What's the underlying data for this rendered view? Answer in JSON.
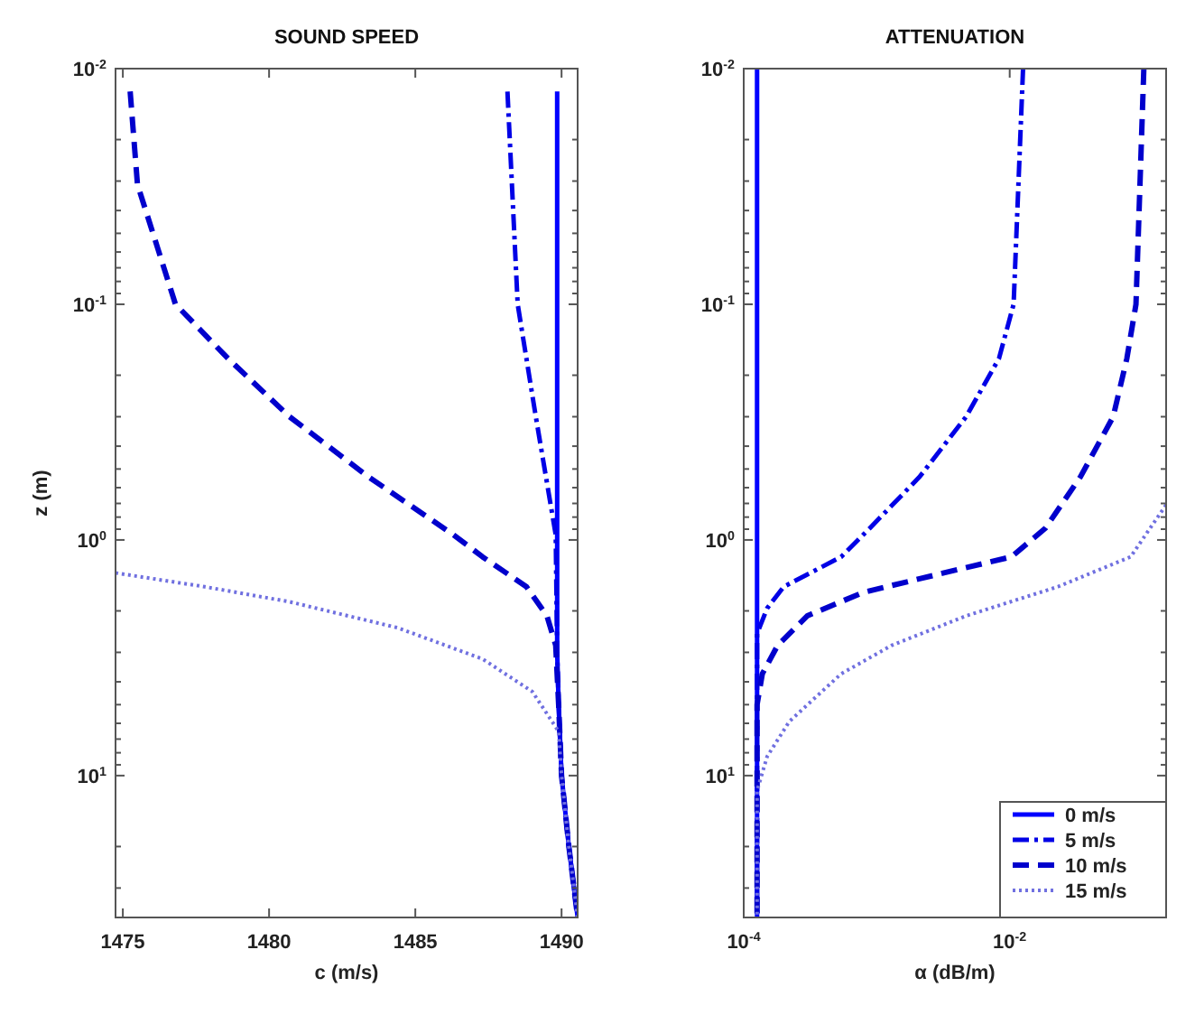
{
  "chart_data": [
    {
      "type": "line",
      "title": "SOUND SPEED",
      "xlabel": "c (m/s)",
      "ylabel": "z (m)",
      "xlim": [
        1474.75,
        1490.55
      ],
      "xticks": [
        1475,
        1480,
        1485,
        1490
      ],
      "ylim": [
        40,
        0.01
      ],
      "log": "y",
      "legend": false,
      "yticks": [
        {
          "value": 0.01,
          "label": "10$^{-2}$"
        },
        {
          "value": 0.02,
          "label": null
        },
        {
          "value": 0.03,
          "label": null
        },
        {
          "value": 0.04,
          "label": null
        },
        {
          "value": 0.05,
          "label": null
        },
        {
          "value": 0.06,
          "label": null
        },
        {
          "value": 0.07,
          "label": null
        },
        {
          "value": 0.08,
          "label": null
        },
        {
          "value": 0.09,
          "label": null
        },
        {
          "value": 0.1,
          "label": "10$^{-1}$"
        },
        {
          "value": 0.2,
          "label": null
        },
        {
          "value": 0.3,
          "label": null
        },
        {
          "value": 0.4,
          "label": null
        },
        {
          "value": 0.5,
          "label": null
        },
        {
          "value": 0.6,
          "label": null
        },
        {
          "value": 0.7,
          "label": null
        },
        {
          "value": 0.8,
          "label": null
        },
        {
          "value": 0.9,
          "label": null
        },
        {
          "value": 1,
          "label": "10$^{0}$"
        },
        {
          "value": 2,
          "label": null
        },
        {
          "value": 3,
          "label": null
        },
        {
          "value": 4,
          "label": null
        },
        {
          "value": 5,
          "label": null
        },
        {
          "value": 6,
          "label": null
        },
        {
          "value": 7,
          "label": null
        },
        {
          "value": 8,
          "label": null
        },
        {
          "value": 9,
          "label": null
        },
        {
          "value": 10,
          "label": "10$^{1}$"
        },
        {
          "value": 20,
          "label": null
        },
        {
          "value": 30,
          "label": null
        }
      ],
      "series": [
        {
          "color": "#0000ff",
          "line_style": "solid",
          "x": [
            1489.85,
            1489.85,
            1489.9,
            1490.0,
            1490.25,
            1490.55
          ],
          "values": [
            0.0125,
            3,
            5,
            10,
            20,
            40
          ]
        },
        {
          "color": "#0000e6",
          "line_style": "dashdot",
          "x": [
            1488.15,
            1488.5,
            1489.1,
            1489.8,
            1489.85,
            1489.9,
            1490.0,
            1490.25,
            1490.55
          ],
          "values": [
            0.0125,
            0.1,
            0.29,
            0.95,
            3,
            5,
            10,
            20,
            40
          ]
        },
        {
          "color": "#0000cc",
          "line_style": "dashed",
          "x": [
            1475.25,
            1475.5,
            1476.8,
            1478.6,
            1480.7,
            1483.4,
            1486.3,
            1487.3,
            1488.8,
            1489.5,
            1489.8,
            1489.9,
            1490.0,
            1490.25,
            1490.55
          ],
          "values": [
            0.0125,
            0.031,
            0.1,
            0.17,
            0.3,
            0.54,
            0.95,
            1.18,
            1.58,
            2.1,
            2.8,
            5,
            10,
            20,
            40
          ]
        },
        {
          "color": "#7070e0",
          "line_style": "dotted",
          "x": [
            1474.75,
            1477.8,
            1480.7,
            1484.4,
            1487.3,
            1489.0,
            1489.9,
            1490.0,
            1490.25,
            1490.55
          ],
          "values": [
            1.38,
            1.58,
            1.83,
            2.36,
            3.2,
            4.4,
            6.5,
            10,
            20,
            40
          ]
        }
      ]
    },
    {
      "type": "line",
      "title": "ATTENUATION",
      "xlabel": "α (dB/m)",
      "xlim": [
        0.0001,
        0.15
      ],
      "xticks": [
        {
          "value": 0.0001,
          "label": "10$^{-4}$"
        },
        {
          "value": 0.01,
          "label": "10$^{-2}$"
        }
      ],
      "ylim": [
        40,
        0.01
      ],
      "log": "xy",
      "legend": "bottom right",
      "yticks": [
        {
          "value": 0.01,
          "label": "10$^{-2}$"
        },
        {
          "value": 0.02,
          "label": null
        },
        {
          "value": 0.03,
          "label": null
        },
        {
          "value": 0.04,
          "label": null
        },
        {
          "value": 0.05,
          "label": null
        },
        {
          "value": 0.06,
          "label": null
        },
        {
          "value": 0.07,
          "label": null
        },
        {
          "value": 0.08,
          "label": null
        },
        {
          "value": 0.09,
          "label": null
        },
        {
          "value": 0.1,
          "label": "10$^{-1}$"
        },
        {
          "value": 0.2,
          "label": null
        },
        {
          "value": 0.3,
          "label": null
        },
        {
          "value": 0.4,
          "label": null
        },
        {
          "value": 0.5,
          "label": null
        },
        {
          "value": 0.6,
          "label": null
        },
        {
          "value": 0.7,
          "label": null
        },
        {
          "value": 0.8,
          "label": null
        },
        {
          "value": 0.9,
          "label": null
        },
        {
          "value": 1,
          "label": "10$^{0}$"
        },
        {
          "value": 2,
          "label": null
        },
        {
          "value": 3,
          "label": null
        },
        {
          "value": 4,
          "label": null
        },
        {
          "value": 5,
          "label": null
        },
        {
          "value": 6,
          "label": null
        },
        {
          "value": 7,
          "label": null
        },
        {
          "value": 8,
          "label": null
        },
        {
          "value": 9,
          "label": null
        },
        {
          "value": 10,
          "label": "10$^{1}$"
        },
        {
          "value": 20,
          "label": null
        },
        {
          "value": 30,
          "label": null
        }
      ],
      "series": [
        {
          "name": "0 m/s",
          "color": "#0000ff",
          "line_style": "solid",
          "x": [
            0.000126,
            0.000126
          ],
          "values": [
            0.01,
            40
          ]
        },
        {
          "name": "5 m/s",
          "color": "#0000e6",
          "line_style": "dashdot",
          "x": [
            0.0126,
            0.0107,
            0.0083,
            0.0047,
            0.0021,
            0.00089,
            0.00054,
            0.0002,
            0.00015,
            0.000126,
            0.000126
          ],
          "values": [
            0.01,
            0.1,
            0.17,
            0.3,
            0.54,
            0.89,
            1.18,
            1.58,
            1.95,
            2.5,
            40
          ]
        },
        {
          "name": "10 m/s",
          "color": "#0000cc",
          "line_style": "dashed",
          "x": [
            0.102,
            0.089,
            0.076,
            0.06,
            0.034,
            0.0186,
            0.0103,
            0.0032,
            0.00079,
            0.0003,
            0.00018,
            0.000138,
            0.000126,
            0.000126
          ],
          "values": [
            0.01,
            0.1,
            0.17,
            0.3,
            0.54,
            0.89,
            1.18,
            1.38,
            1.67,
            2.1,
            2.8,
            3.7,
            5,
            40
          ]
        },
        {
          "name": "15 m/s",
          "color": "#7070e0",
          "line_style": "dotted",
          "x": [
            0.15,
            0.081,
            0.023,
            0.0047,
            0.0013,
            0.00054,
            0.00022,
            0.00015,
            0.000126,
            0.000126
          ],
          "values": [
            0.71,
            1.18,
            1.58,
            2.1,
            2.8,
            3.7,
            5.9,
            8.3,
            11.6,
            40
          ]
        }
      ]
    }
  ]
}
